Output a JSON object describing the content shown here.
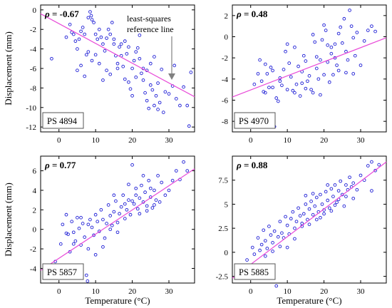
{
  "chart_data": [
    {
      "type": "scatter",
      "id": "ps4894",
      "label": "PS 4894",
      "rho_value": "= -0.67",
      "xlabel": "",
      "ylabel": "Displacement (mm)",
      "xlim": [
        -5,
        37
      ],
      "ylim": [
        -12.5,
        0.5
      ],
      "xticks": [
        0,
        10,
        20,
        30
      ],
      "yticks": [
        0,
        -2,
        -4,
        -6,
        -8,
        -10,
        -12
      ],
      "xtick_labels": [
        "0",
        "10",
        "20",
        "30"
      ],
      "ytick_labels": [
        "0",
        "-2",
        "-4",
        "-6",
        "-8",
        "-10",
        "-12"
      ],
      "fit": [
        [
          -5,
          -0.4
        ],
        [
          37,
          -8.9
        ]
      ],
      "annotation": {
        "line1": "least-squares",
        "line2": "reference line"
      },
      "points": [
        [
          -2,
          -5
        ],
        [
          2,
          -2.8
        ],
        [
          3,
          -1.5
        ],
        [
          3.5,
          -2.3
        ],
        [
          4,
          -2.5
        ],
        [
          4.5,
          -3.2
        ],
        [
          5,
          -4
        ],
        [
          5.5,
          -3
        ],
        [
          6,
          -2.2
        ],
        [
          6.5,
          -1.8
        ],
        [
          7,
          -2.5
        ],
        [
          7.5,
          -4.6
        ],
        [
          8,
          -0.8
        ],
        [
          8.5,
          -0.2
        ],
        [
          8.8,
          -0.6
        ],
        [
          9,
          -1
        ],
        [
          9.5,
          -1.3
        ],
        [
          10,
          -2.5
        ],
        [
          10.5,
          -3
        ],
        [
          11,
          -2
        ],
        [
          11.5,
          -2.8
        ],
        [
          12,
          -3.5
        ],
        [
          12.5,
          -4.2
        ],
        [
          13,
          -6.2
        ],
        [
          13.5,
          -2
        ],
        [
          14,
          -2.5
        ],
        [
          14.5,
          -1.3
        ],
        [
          15,
          -3.5
        ],
        [
          15.5,
          -4.7
        ],
        [
          16,
          -6
        ],
        [
          16.5,
          -3.8
        ],
        [
          17,
          -4.7
        ],
        [
          17.5,
          -5.8
        ],
        [
          18,
          -3.2
        ],
        [
          18.5,
          -4.5
        ],
        [
          19,
          -7.4
        ],
        [
          19.5,
          -8.1
        ],
        [
          20,
          -6
        ],
        [
          20.5,
          -5.2
        ],
        [
          21,
          -4.3
        ],
        [
          21.5,
          -3.9
        ],
        [
          22,
          -2.6
        ],
        [
          22.5,
          -6.5
        ],
        [
          23,
          -7.2
        ],
        [
          23.5,
          -8.5
        ],
        [
          24,
          -9.3
        ],
        [
          24.5,
          -10.1
        ],
        [
          25,
          -5.5
        ],
        [
          25.5,
          -8.2
        ],
        [
          26,
          -9.8
        ],
        [
          26.5,
          -8.8
        ],
        [
          27,
          -7.5
        ],
        [
          27.5,
          -9.5
        ],
        [
          28,
          -6.1
        ],
        [
          28.5,
          -10.5
        ],
        [
          29,
          -8.4
        ],
        [
          30,
          -8.6
        ],
        [
          31,
          -7.8
        ],
        [
          31.5,
          -5.7
        ],
        [
          32,
          -9.1
        ],
        [
          33,
          -9.8
        ],
        [
          34,
          -7.9
        ],
        [
          35,
          -9.8
        ],
        [
          35.5,
          -11.9
        ],
        [
          36,
          -6.4
        ],
        [
          5,
          -6.2
        ],
        [
          7,
          -6.8
        ],
        [
          9,
          -5.2
        ],
        [
          11,
          -5.5
        ],
        [
          12,
          -7.2
        ],
        [
          14,
          -6.6
        ],
        [
          16,
          -5.5
        ],
        [
          18,
          -7.1
        ],
        [
          20,
          -8.8
        ],
        [
          22,
          -5
        ],
        [
          24,
          -6.2
        ],
        [
          26,
          -4.8
        ],
        [
          15,
          -3
        ],
        [
          17,
          -3.5
        ],
        [
          19,
          -3.8
        ],
        [
          21,
          -6.9
        ],
        [
          23,
          -6
        ],
        [
          25,
          -7.7
        ],
        [
          27,
          -10.2
        ],
        [
          10,
          -4.6
        ],
        [
          6,
          -5.7
        ],
        [
          8,
          -4.3
        ],
        [
          13,
          -2.9
        ]
      ]
    },
    {
      "type": "scatter",
      "id": "ps4970",
      "label": "PS 4970",
      "rho_value": "= 0.48",
      "xlabel": "",
      "ylabel": "",
      "xlim": [
        -5,
        37
      ],
      "ylim": [
        -9,
        3
      ],
      "xticks": [
        0,
        10,
        20,
        30
      ],
      "yticks": [
        2,
        0,
        -2,
        -4,
        -6,
        -8
      ],
      "xtick_labels": [
        "0",
        "10",
        "20",
        "30"
      ],
      "ytick_labels": [
        "2",
        "0",
        "-2",
        "-4",
        "-6",
        "-8"
      ],
      "fit": [
        [
          -5,
          -5.7
        ],
        [
          37,
          -0.1
        ]
      ],
      "points": [
        [
          1,
          -4.5
        ],
        [
          2,
          -3.5
        ],
        [
          2.5,
          -2.2
        ],
        [
          3,
          -4.2
        ],
        [
          3.5,
          -5.2
        ],
        [
          4,
          -2.6
        ],
        [
          4.5,
          -3.5
        ],
        [
          5,
          -4.8
        ],
        [
          5.5,
          -2.9
        ],
        [
          6,
          -3.2
        ],
        [
          6.5,
          -8.5
        ],
        [
          7,
          -5.8
        ],
        [
          7.5,
          -6.1
        ],
        [
          8,
          -4.2
        ],
        [
          8.5,
          -4.6
        ],
        [
          9,
          -3.1
        ],
        [
          9.5,
          -1.4
        ],
        [
          10,
          -0.7
        ],
        [
          10.5,
          -2.5
        ],
        [
          11,
          -3.8
        ],
        [
          11.5,
          -5.1
        ],
        [
          12,
          -1
        ],
        [
          12.5,
          -4.5
        ],
        [
          13,
          -2.8
        ],
        [
          13.5,
          -5.6
        ],
        [
          14,
          -3.3
        ],
        [
          14.5,
          -1.8
        ],
        [
          15,
          -2.3
        ],
        [
          15.5,
          -4.2
        ],
        [
          16,
          -3.7
        ],
        [
          16.5,
          -5
        ],
        [
          17,
          0.2
        ],
        [
          17.5,
          -0.5
        ],
        [
          18,
          -1.9
        ],
        [
          18.5,
          -4
        ],
        [
          19,
          -2.2
        ],
        [
          19.5,
          -0.3
        ],
        [
          20,
          1.1
        ],
        [
          20.5,
          0.6
        ],
        [
          21,
          -2.4
        ],
        [
          21.5,
          -4.3
        ],
        [
          22,
          -1.6
        ],
        [
          22.5,
          -3.6
        ],
        [
          23,
          -0.7
        ],
        [
          23.5,
          -2.7
        ],
        [
          24,
          -3.2
        ],
        [
          24.5,
          0.9
        ],
        [
          25,
          -0.6
        ],
        [
          25.5,
          1.7
        ],
        [
          26,
          -1.4
        ],
        [
          26.5,
          -2.2
        ],
        [
          27,
          2.5
        ],
        [
          27.5,
          1
        ],
        [
          28,
          -0.1
        ],
        [
          28.5,
          -1.8
        ],
        [
          29,
          0.4
        ],
        [
          30,
          -2.7
        ],
        [
          31,
          -0.4
        ],
        [
          32,
          0.6
        ],
        [
          33,
          1
        ],
        [
          34,
          0.5
        ],
        [
          12,
          -5.3
        ],
        [
          14,
          -4.4
        ],
        [
          18,
          -3
        ],
        [
          20,
          -3.6
        ],
        [
          22,
          -1
        ],
        [
          24,
          0.3
        ],
        [
          26,
          -3.4
        ],
        [
          17,
          -5.3
        ],
        [
          15,
          -4.9
        ],
        [
          19,
          -5.5
        ],
        [
          10,
          -5
        ],
        [
          8,
          -3.9
        ],
        [
          6,
          -4.8
        ],
        [
          4,
          -5.3
        ],
        [
          23,
          -2
        ],
        [
          21,
          -0.8
        ],
        [
          28,
          -3.5
        ]
      ]
    },
    {
      "type": "scatter",
      "id": "ps5857",
      "label": "PS 5857",
      "rho_value": "= 0.77",
      "xlabel": "Temperature (°C)",
      "ylabel": "Displacement (mm)",
      "xlim": [
        -5,
        37
      ],
      "ylim": [
        -5.5,
        7.5
      ],
      "xticks": [
        0,
        10,
        20,
        30
      ],
      "yticks": [
        6,
        4,
        2,
        0,
        -2,
        -4
      ],
      "xtick_labels": [
        "0",
        "10",
        "20",
        "30"
      ],
      "ytick_labels": [
        "6",
        "4",
        "2",
        "0",
        "-2",
        "-4"
      ],
      "fit": [
        [
          -5,
          -4.2
        ],
        [
          37,
          6.2
        ]
      ],
      "points": [
        [
          -1,
          -3.3
        ],
        [
          0.5,
          -1.5
        ],
        [
          1,
          0.5
        ],
        [
          2,
          1.5
        ],
        [
          2.5,
          -0.5
        ],
        [
          3,
          -2.3
        ],
        [
          3.5,
          0.8
        ],
        [
          4,
          -0.3
        ],
        [
          4.5,
          -1.2
        ],
        [
          5,
          1.2
        ],
        [
          5.5,
          0.1
        ],
        [
          6,
          -1.6
        ],
        [
          6.5,
          0.6
        ],
        [
          7,
          -0.8
        ],
        [
          7.5,
          -4.7
        ],
        [
          7.8,
          -5.3
        ],
        [
          8,
          -2
        ],
        [
          8.5,
          1
        ],
        [
          9,
          0.2
        ],
        [
          9.5,
          -0.6
        ],
        [
          10,
          1.5
        ],
        [
          10.5,
          0.8
        ],
        [
          11,
          -0.2
        ],
        [
          11.5,
          2
        ],
        [
          12,
          1
        ],
        [
          12.5,
          -0.9
        ],
        [
          13,
          0.6
        ],
        [
          13.5,
          2.5
        ],
        [
          14,
          1.4
        ],
        [
          14.5,
          0.4
        ],
        [
          15,
          1.8
        ],
        [
          15.5,
          2.9
        ],
        [
          16,
          0.7
        ],
        [
          16.5,
          1.6
        ],
        [
          17,
          2.3
        ],
        [
          17.5,
          3.5
        ],
        [
          18,
          1.1
        ],
        [
          18.5,
          2
        ],
        [
          19,
          3
        ],
        [
          19.5,
          1.5
        ],
        [
          20,
          6.6
        ],
        [
          20.5,
          2.6
        ],
        [
          21,
          4.2
        ],
        [
          21.5,
          2.1
        ],
        [
          22,
          3.2
        ],
        [
          22.5,
          4.5
        ],
        [
          23,
          2.8
        ],
        [
          23.5,
          3.8
        ],
        [
          24,
          2.4
        ],
        [
          24.5,
          5
        ],
        [
          25,
          3.3
        ],
        [
          25.5,
          2.2
        ],
        [
          26,
          4
        ],
        [
          26.5,
          3
        ],
        [
          27,
          5.5
        ],
        [
          27.5,
          2.8
        ],
        [
          28,
          4.8
        ],
        [
          29,
          3.5
        ],
        [
          30,
          4
        ],
        [
          31,
          5
        ],
        [
          32,
          6
        ],
        [
          33,
          5.1
        ],
        [
          34,
          6.9
        ],
        [
          35,
          6
        ],
        [
          12,
          -1.8
        ],
        [
          10,
          -2.6
        ],
        [
          14,
          0
        ],
        [
          16,
          -0.3
        ],
        [
          18,
          2.6
        ],
        [
          20,
          2.9
        ],
        [
          22,
          1.6
        ],
        [
          24,
          1.9
        ],
        [
          26,
          2.5
        ],
        [
          8,
          0.5
        ],
        [
          6,
          1.2
        ],
        [
          4,
          -1.5
        ],
        [
          2,
          -0.4
        ],
        [
          15,
          3.5
        ],
        [
          19,
          4.6
        ],
        [
          21,
          3.5
        ],
        [
          23,
          5.5
        ],
        [
          25,
          4.2
        ]
      ]
    },
    {
      "type": "scatter",
      "id": "ps5885",
      "label": "PS 5885",
      "rho_value": "= 0.88",
      "xlabel": "Temperature (°C)",
      "ylabel": "",
      "xlim": [
        -5,
        37
      ],
      "ylim": [
        -3.2,
        10
      ],
      "xticks": [
        0,
        10,
        20,
        30
      ],
      "yticks": [
        7.5,
        5,
        2.5,
        0,
        -2.5
      ],
      "xtick_labels": [
        "0",
        "10",
        "20",
        "30"
      ],
      "ytick_labels": [
        "7.5",
        "5",
        "2.5",
        "0",
        "-2.5"
      ],
      "fit": [
        [
          -5,
          -2.7
        ],
        [
          37,
          9.4
        ]
      ],
      "points": [
        [
          -1,
          -0.8
        ],
        [
          0.5,
          0.5
        ],
        [
          1,
          -0.2
        ],
        [
          2,
          1.5
        ],
        [
          2.5,
          0.2
        ],
        [
          3,
          0.8
        ],
        [
          3.5,
          2.3
        ],
        [
          4,
          1.2
        ],
        [
          4.5,
          0.4
        ],
        [
          5,
          2.7
        ],
        [
          5.5,
          1.8
        ],
        [
          6,
          1
        ],
        [
          6.5,
          2.2
        ],
        [
          7,
          -3.5
        ],
        [
          7.5,
          1.6
        ],
        [
          8,
          3.2
        ],
        [
          8.5,
          2
        ],
        [
          9,
          1.5
        ],
        [
          9.5,
          3.7
        ],
        [
          10,
          2.8
        ],
        [
          10.5,
          1.9
        ],
        [
          11,
          3.5
        ],
        [
          11.5,
          4.2
        ],
        [
          12,
          2.5
        ],
        [
          12.5,
          3.2
        ],
        [
          13,
          4.6
        ],
        [
          13.5,
          3.8
        ],
        [
          14,
          2.7
        ],
        [
          14.5,
          4
        ],
        [
          15,
          5
        ],
        [
          15.5,
          3.4
        ],
        [
          16,
          4.5
        ],
        [
          16.5,
          5.3
        ],
        [
          17,
          3.9
        ],
        [
          17.5,
          4.8
        ],
        [
          18,
          5.7
        ],
        [
          18.5,
          4.2
        ],
        [
          19,
          6
        ],
        [
          19.5,
          5
        ],
        [
          20,
          4.4
        ],
        [
          20.5,
          6.3
        ],
        [
          21,
          5.4
        ],
        [
          21.5,
          4.6
        ],
        [
          22,
          6.6
        ],
        [
          22.5,
          5.8
        ],
        [
          23,
          7
        ],
        [
          23.5,
          5.2
        ],
        [
          24,
          6.4
        ],
        [
          24.5,
          7.4
        ],
        [
          25,
          6
        ],
        [
          25.5,
          4.8
        ],
        [
          26,
          7
        ],
        [
          26.5,
          6.5
        ],
        [
          27,
          7.8
        ],
        [
          27.5,
          6.8
        ],
        [
          28,
          7.2
        ],
        [
          29,
          6.5
        ],
        [
          30,
          8
        ],
        [
          31,
          7.5
        ],
        [
          32,
          9
        ],
        [
          33,
          9.4
        ],
        [
          34,
          8.5
        ],
        [
          35,
          9.1
        ],
        [
          10,
          0.5
        ],
        [
          12,
          1.4
        ],
        [
          14,
          3
        ],
        [
          16,
          2.9
        ],
        [
          18,
          3.4
        ],
        [
          20,
          4
        ],
        [
          22,
          4.3
        ],
        [
          24,
          5.5
        ],
        [
          26,
          5.8
        ],
        [
          8,
          0.6
        ],
        [
          6,
          0.1
        ],
        [
          4,
          -0.4
        ],
        [
          15,
          5.9
        ],
        [
          17,
          6.1
        ],
        [
          19,
          3.6
        ],
        [
          21,
          7
        ],
        [
          23,
          4.9
        ],
        [
          28,
          5.6
        ],
        [
          33,
          6.4
        ]
      ]
    }
  ]
}
